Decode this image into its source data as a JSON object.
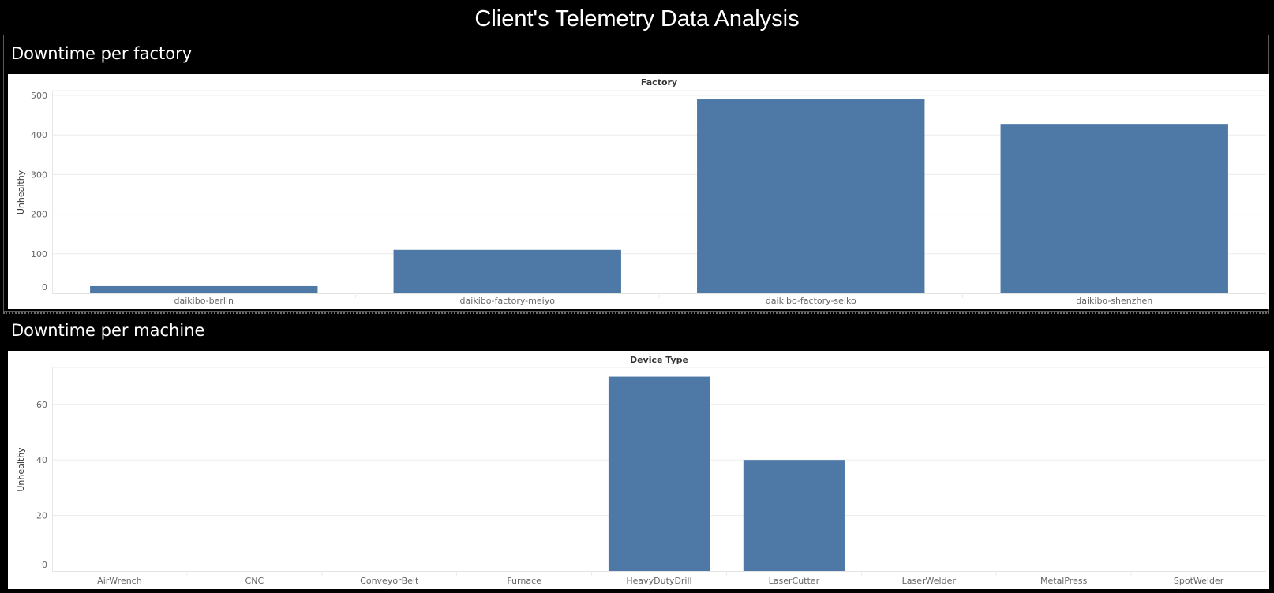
{
  "dashboard": {
    "title": "Client's Telemetry Data Analysis"
  },
  "sections": [
    {
      "title": "Downtime per factory"
    },
    {
      "title": "Downtime per machine"
    }
  ],
  "colors": {
    "bar": "#4e79a7",
    "grid": "#ececec",
    "tick": "#666666",
    "header": "#333333"
  },
  "chart_data": [
    {
      "type": "bar",
      "title": "",
      "header": "Factory",
      "ylabel": "Unhealthy",
      "categories": [
        "daikibo-berlin",
        "daikibo-factory-meiyo",
        "daikibo-factory-seiko",
        "daikibo-shenzhen"
      ],
      "values": [
        18,
        110,
        490,
        428
      ],
      "yticks": [
        0,
        100,
        200,
        300,
        400,
        500
      ],
      "ylim": [
        0,
        510
      ],
      "grid": true,
      "legend": "none"
    },
    {
      "type": "bar",
      "title": "",
      "header": "Device Type",
      "ylabel": "Unhealthy",
      "categories": [
        "AirWrench",
        "CNC",
        "ConveyorBelt",
        "Furnace",
        "HeavyDutyDrill",
        "LaserCutter",
        "LaserWelder",
        "MetalPress",
        "SpotWelder"
      ],
      "values": [
        0,
        0,
        0,
        0,
        70,
        40,
        0,
        0,
        0
      ],
      "yticks": [
        0,
        20,
        40,
        60
      ],
      "ylim": [
        0,
        73
      ],
      "grid": true,
      "legend": "none"
    }
  ]
}
